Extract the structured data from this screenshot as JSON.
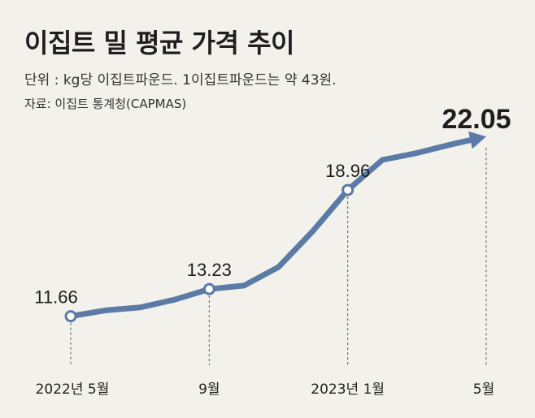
{
  "header": {
    "title": "이집트 밀 평균 가격 추이",
    "subtitle": "단위 : kg당 이집트파운드. 1이집트파운드는 약 43원.",
    "source": "자료: 이집트 통계청(CAPMAS)"
  },
  "colors": {
    "line": "#5b7ba6",
    "background": "#f3f1ec",
    "marker_fill": "#ffffff"
  },
  "chart_data": {
    "type": "line",
    "title": "이집트 밀 평균 가격 추이",
    "xlabel": "",
    "ylabel": "",
    "categories": [
      "2022년 5월",
      "9월",
      "2023년 1월",
      "5월"
    ],
    "x": [
      "2022-05",
      "2022-06",
      "2022-07",
      "2022-08",
      "2022-09",
      "2022-10",
      "2022-11",
      "2022-12",
      "2023-01",
      "2023-02",
      "2023-03",
      "2023-04",
      "2023-05"
    ],
    "series": [
      {
        "values": [
          11.66,
          12.0,
          12.17,
          12.62,
          13.23,
          13.43,
          14.5,
          16.6,
          18.96,
          20.7,
          21.1,
          21.6,
          22.05
        ]
      }
    ],
    "labeled_points": [
      {
        "x": "2022-05",
        "label": "11.66"
      },
      {
        "x": "2022-09",
        "label": "13.23"
      },
      {
        "x": "2023-01",
        "label": "18.96"
      },
      {
        "x": "2023-05",
        "label": "22.05"
      }
    ],
    "ylim": [
      10,
      23
    ],
    "grid": false,
    "legend": "none"
  }
}
